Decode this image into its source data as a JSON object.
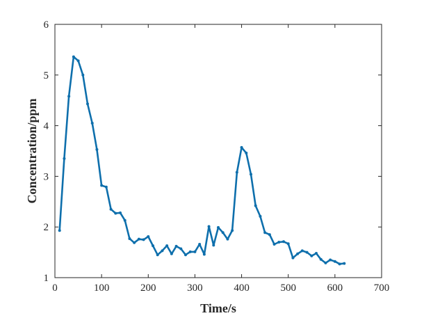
{
  "chart_data": {
    "type": "line",
    "title": "",
    "xlabel": "Time/s",
    "ylabel": "Concentration/ppm",
    "xlim": [
      0,
      700
    ],
    "ylim": [
      1,
      6
    ],
    "xticks": [
      0,
      100,
      200,
      300,
      400,
      500,
      600,
      700
    ],
    "yticks": [
      1,
      2,
      3,
      4,
      5,
      6
    ],
    "grid": false,
    "legend": "none",
    "series": [
      {
        "color": "#0e6fac",
        "marker": "dot",
        "x": [
          10,
          20,
          30,
          40,
          50,
          60,
          70,
          80,
          90,
          100,
          110,
          120,
          130,
          140,
          150,
          160,
          170,
          180,
          190,
          200,
          210,
          220,
          230,
          240,
          250,
          260,
          270,
          280,
          290,
          300,
          310,
          320,
          330,
          340,
          350,
          360,
          370,
          380,
          390,
          400,
          410,
          420,
          430,
          440,
          450,
          460,
          470,
          480,
          490,
          500,
          510,
          520,
          530,
          540,
          550,
          560,
          570,
          580,
          590,
          600,
          610,
          620
        ],
        "y": [
          1.93,
          3.35,
          4.58,
          5.36,
          5.28,
          5.0,
          4.43,
          4.05,
          3.53,
          2.82,
          2.79,
          2.35,
          2.27,
          2.28,
          2.13,
          1.77,
          1.69,
          1.76,
          1.75,
          1.81,
          1.63,
          1.45,
          1.53,
          1.63,
          1.47,
          1.62,
          1.57,
          1.45,
          1.51,
          1.51,
          1.66,
          1.46,
          2.01,
          1.64,
          1.99,
          1.89,
          1.76,
          1.93,
          3.08,
          3.57,
          3.46,
          3.04,
          2.42,
          2.21,
          1.89,
          1.85,
          1.66,
          1.7,
          1.71,
          1.67,
          1.39,
          1.47,
          1.53,
          1.5,
          1.43,
          1.48,
          1.36,
          1.29,
          1.35,
          1.32,
          1.27,
          1.28
        ]
      }
    ]
  }
}
